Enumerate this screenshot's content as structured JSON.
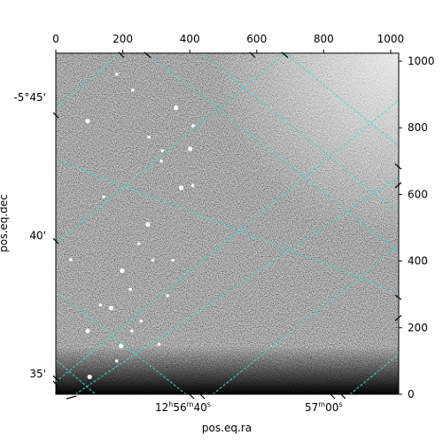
{
  "chart_data": {
    "type": "heatmap",
    "title": "",
    "xlabel": "pos.eq.ra",
    "ylabel": "pos.eq.dec",
    "pixel_axes": {
      "x": {
        "ticks": [
          0,
          200,
          400,
          600,
          800,
          1000
        ],
        "range": [
          0,
          1024
        ]
      },
      "y": {
        "ticks": [
          0,
          200,
          400,
          600,
          800,
          1000
        ],
        "range": [
          0,
          1024
        ]
      }
    },
    "world_axes": {
      "ra_ticks": [
        {
          "h": "12",
          "m": "56",
          "s": "40"
        },
        {
          "h": "",
          "m": "57",
          "s": "00"
        }
      ],
      "dec_ticks": [
        "-5°45'",
        "40'",
        "35'"
      ]
    },
    "grid": true,
    "grid_color": "#40d8d8",
    "image_colormap": "gray",
    "sources": [
      [
        95,
        820
      ],
      [
        278,
        772
      ],
      [
        318,
        731
      ],
      [
        401,
        737
      ],
      [
        409,
        627
      ],
      [
        248,
        452
      ],
      [
        198,
        371
      ],
      [
        290,
        402
      ],
      [
        334,
        296
      ],
      [
        165,
        259
      ],
      [
        223,
        315
      ],
      [
        133,
        268
      ],
      [
        95,
        190
      ],
      [
        227,
        190
      ],
      [
        410,
        806
      ],
      [
        359,
        860
      ],
      [
        182,
        961
      ],
      [
        230,
        913
      ],
      [
        375,
        620
      ],
      [
        315,
        700
      ],
      [
        143,
        593
      ],
      [
        275,
        510
      ],
      [
        255,
        220
      ],
      [
        182,
        100
      ],
      [
        101,
        52
      ],
      [
        350,
        402
      ],
      [
        308,
        150
      ],
      [
        195,
        145
      ],
      [
        45,
        404
      ]
    ]
  }
}
